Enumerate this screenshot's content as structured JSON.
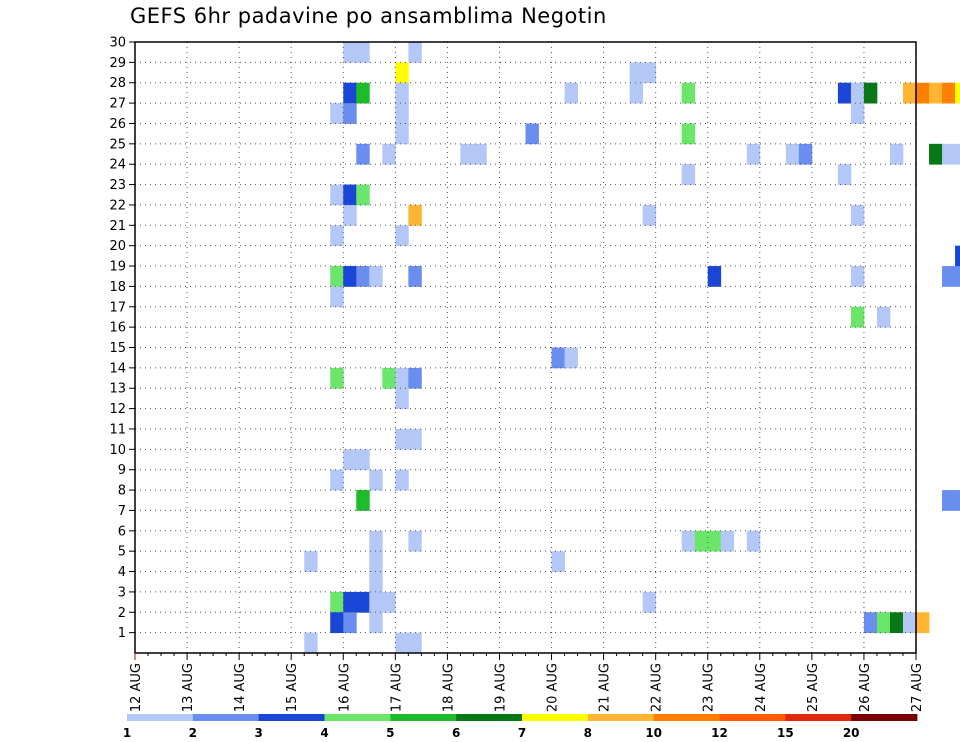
{
  "chart_data": {
    "type": "heatmap",
    "title": "GEFS 6hr padavine po ansamblima Negotin",
    "x_ticks": [
      "12 AUG",
      "13 AUG",
      "14 AUG",
      "15 AUG",
      "16 AUG",
      "17 AUG",
      "18 AUG",
      "19 AUG",
      "20 AUG",
      "21 AUG",
      "22 AUG",
      "23 AUG",
      "24 AUG",
      "25 AUG",
      "26 AUG",
      "27 AUG"
    ],
    "y_ticks": [
      1,
      2,
      3,
      4,
      5,
      6,
      7,
      8,
      9,
      10,
      11,
      12,
      13,
      14,
      15,
      16,
      17,
      18,
      19,
      20,
      21,
      22,
      23,
      24,
      25,
      26,
      27,
      28,
      29,
      30
    ],
    "xlim": [
      "12 AUG",
      "27 AUG"
    ],
    "ylim": [
      0,
      30
    ],
    "time_step_hours": 6,
    "grid": "dotted",
    "legend_position": "bottom",
    "legend": {
      "labels": [
        "1",
        "2",
        "3",
        "4",
        "5",
        "6",
        "7",
        "8",
        "10",
        "12",
        "15",
        "20"
      ],
      "colors": [
        "#b4c8f8",
        "#6a8ef0",
        "#1a46d8",
        "#6ce66a",
        "#1cbc2a",
        "#087816",
        "#ffff00",
        "#ffb432",
        "#ff8000",
        "#ff5a00",
        "#dc2a0a",
        "#780000"
      ]
    },
    "cells": [
      {
        "m": 30,
        "t": "16 AUG 00z",
        "v": 1
      },
      {
        "m": 30,
        "t": "16 AUG 06z",
        "v": 1
      },
      {
        "m": 30,
        "t": "17 AUG 06z",
        "v": 1
      },
      {
        "m": 29,
        "t": "17 AUG 00z",
        "v": 7
      },
      {
        "m": 29,
        "t": "21 AUG 12z",
        "v": 1
      },
      {
        "m": 29,
        "t": "21 AUG 18z",
        "v": 1
      },
      {
        "m": 28,
        "t": "16 AUG 00z",
        "v": 3
      },
      {
        "m": 28,
        "t": "16 AUG 06z",
        "v": 5
      },
      {
        "m": 28,
        "t": "17 AUG 00z",
        "v": 1
      },
      {
        "m": 28,
        "t": "20 AUG 06z",
        "v": 1
      },
      {
        "m": 28,
        "t": "21 AUG 12z",
        "v": 1
      },
      {
        "m": 28,
        "t": "22 AUG 12z",
        "v": 4
      },
      {
        "m": 28,
        "t": "25 AUG 12z",
        "v": 3
      },
      {
        "m": 28,
        "t": "25 AUG 18z",
        "v": 1
      },
      {
        "m": 28,
        "t": "26 AUG 00z",
        "v": 6
      },
      {
        "m": 28,
        "t": "26 AUG 18z",
        "v": 8
      },
      {
        "m": 28,
        "t": "27 AUG 00z",
        "v": 10
      },
      {
        "m": 28,
        "t": "27 AUG 06z",
        "v": 8
      },
      {
        "m": 28,
        "t": "27 AUG 12z",
        "v": 10
      },
      {
        "m": 28,
        "t": "27 AUG 18z",
        "v": 7
      },
      {
        "m": 27,
        "t": "15 AUG 18z",
        "v": 1
      },
      {
        "m": 27,
        "t": "16 AUG 00z",
        "v": 2
      },
      {
        "m": 27,
        "t": "17 AUG 00z",
        "v": 1
      },
      {
        "m": 27,
        "t": "25 AUG 18z",
        "v": 1
      },
      {
        "m": 26,
        "t": "17 AUG 00z",
        "v": 1
      },
      {
        "m": 26,
        "t": "19 AUG 12z",
        "v": 2
      },
      {
        "m": 26,
        "t": "22 AUG 12z",
        "v": 4
      },
      {
        "m": 25,
        "t": "16 AUG 06z",
        "v": 2
      },
      {
        "m": 25,
        "t": "16 AUG 18z",
        "v": 1
      },
      {
        "m": 25,
        "t": "18 AUG 06z",
        "v": 1
      },
      {
        "m": 25,
        "t": "18 AUG 12z",
        "v": 1
      },
      {
        "m": 25,
        "t": "23 AUG 18z",
        "v": 1
      },
      {
        "m": 25,
        "t": "24 AUG 12z",
        "v": 1
      },
      {
        "m": 25,
        "t": "24 AUG 18z",
        "v": 2
      },
      {
        "m": 25,
        "t": "26 AUG 12z",
        "v": 1
      },
      {
        "m": 25,
        "t": "27 AUG 06z",
        "v": 6
      },
      {
        "m": 25,
        "t": "27 AUG 12z",
        "v": 1
      },
      {
        "m": 25,
        "t": "27 AUG 18z",
        "v": 1
      },
      {
        "m": 24,
        "t": "22 AUG 12z",
        "v": 1
      },
      {
        "m": 24,
        "t": "25 AUG 12z",
        "v": 1
      },
      {
        "m": 23,
        "t": "15 AUG 18z",
        "v": 1
      },
      {
        "m": 23,
        "t": "16 AUG 00z",
        "v": 3
      },
      {
        "m": 23,
        "t": "16 AUG 06z",
        "v": 4
      },
      {
        "m": 22,
        "t": "16 AUG 00z",
        "v": 1
      },
      {
        "m": 22,
        "t": "17 AUG 06z",
        "v": 8
      },
      {
        "m": 22,
        "t": "21 AUG 18z",
        "v": 1
      },
      {
        "m": 22,
        "t": "25 AUG 18z",
        "v": 1
      },
      {
        "m": 21,
        "t": "15 AUG 18z",
        "v": 1
      },
      {
        "m": 21,
        "t": "17 AUG 00z",
        "v": 1
      },
      {
        "m": 20,
        "t": "27 AUG 18z",
        "v": 3
      },
      {
        "m": 19,
        "t": "15 AUG 18z",
        "v": 4
      },
      {
        "m": 19,
        "t": "16 AUG 00z",
        "v": 3
      },
      {
        "m": 19,
        "t": "16 AUG 06z",
        "v": 2
      },
      {
        "m": 19,
        "t": "16 AUG 12z",
        "v": 1
      },
      {
        "m": 19,
        "t": "17 AUG 06z",
        "v": 2
      },
      {
        "m": 19,
        "t": "23 AUG 00z",
        "v": 3
      },
      {
        "m": 19,
        "t": "25 AUG 18z",
        "v": 1
      },
      {
        "m": 19,
        "t": "27 AUG 12z",
        "v": 2
      },
      {
        "m": 19,
        "t": "27 AUG 18z",
        "v": 2
      },
      {
        "m": 18,
        "t": "15 AUG 18z",
        "v": 1
      },
      {
        "m": 17,
        "t": "25 AUG 18z",
        "v": 4
      },
      {
        "m": 17,
        "t": "26 AUG 06z",
        "v": 1
      },
      {
        "m": 15,
        "t": "20 AUG 00z",
        "v": 2
      },
      {
        "m": 15,
        "t": "20 AUG 06z",
        "v": 1
      },
      {
        "m": 14,
        "t": "15 AUG 18z",
        "v": 4
      },
      {
        "m": 14,
        "t": "16 AUG 18z",
        "v": 4
      },
      {
        "m": 14,
        "t": "17 AUG 00z",
        "v": 1
      },
      {
        "m": 14,
        "t": "17 AUG 06z",
        "v": 2
      },
      {
        "m": 13,
        "t": "17 AUG 00z",
        "v": 1
      },
      {
        "m": 11,
        "t": "17 AUG 00z",
        "v": 1
      },
      {
        "m": 11,
        "t": "17 AUG 06z",
        "v": 1
      },
      {
        "m": 10,
        "t": "16 AUG 00z",
        "v": 1
      },
      {
        "m": 10,
        "t": "16 AUG 06z",
        "v": 1
      },
      {
        "m": 9,
        "t": "15 AUG 18z",
        "v": 1
      },
      {
        "m": 9,
        "t": "16 AUG 12z",
        "v": 1
      },
      {
        "m": 9,
        "t": "17 AUG 00z",
        "v": 1
      },
      {
        "m": 8,
        "t": "16 AUG 06z",
        "v": 5
      },
      {
        "m": 8,
        "t": "27 AUG 12z",
        "v": 2
      },
      {
        "m": 8,
        "t": "27 AUG 18z",
        "v": 2
      },
      {
        "m": 6,
        "t": "16 AUG 12z",
        "v": 1
      },
      {
        "m": 6,
        "t": "17 AUG 06z",
        "v": 1
      },
      {
        "m": 6,
        "t": "22 AUG 12z",
        "v": 1
      },
      {
        "m": 6,
        "t": "22 AUG 18z",
        "v": 4
      },
      {
        "m": 6,
        "t": "23 AUG 00z",
        "v": 4
      },
      {
        "m": 6,
        "t": "23 AUG 06z",
        "v": 1
      },
      {
        "m": 6,
        "t": "23 AUG 18z",
        "v": 1
      },
      {
        "m": 5,
        "t": "15 AUG 06z",
        "v": 1
      },
      {
        "m": 5,
        "t": "16 AUG 12z",
        "v": 1
      },
      {
        "m": 5,
        "t": "20 AUG 00z",
        "v": 1
      },
      {
        "m": 4,
        "t": "16 AUG 12z",
        "v": 1
      },
      {
        "m": 3,
        "t": "15 AUG 18z",
        "v": 4
      },
      {
        "m": 3,
        "t": "16 AUG 00z",
        "v": 3
      },
      {
        "m": 3,
        "t": "16 AUG 06z",
        "v": 3
      },
      {
        "m": 3,
        "t": "16 AUG 12z",
        "v": 1
      },
      {
        "m": 3,
        "t": "16 AUG 18z",
        "v": 1
      },
      {
        "m": 3,
        "t": "21 AUG 18z",
        "v": 1
      },
      {
        "m": 2,
        "t": "15 AUG 18z",
        "v": 3
      },
      {
        "m": 2,
        "t": "16 AUG 00z",
        "v": 2
      },
      {
        "m": 2,
        "t": "16 AUG 12z",
        "v": 1
      },
      {
        "m": 2,
        "t": "26 AUG 00z",
        "v": 2
      },
      {
        "m": 2,
        "t": "26 AUG 06z",
        "v": 4
      },
      {
        "m": 2,
        "t": "26 AUG 12z",
        "v": 6
      },
      {
        "m": 2,
        "t": "26 AUG 18z",
        "v": 1
      },
      {
        "m": 2,
        "t": "27 AUG 00z",
        "v": 8
      },
      {
        "m": 1,
        "t": "15 AUG 06z",
        "v": 1
      },
      {
        "m": 1,
        "t": "17 AUG 00z",
        "v": 1
      },
      {
        "m": 1,
        "t": "17 AUG 06z",
        "v": 1
      }
    ]
  }
}
